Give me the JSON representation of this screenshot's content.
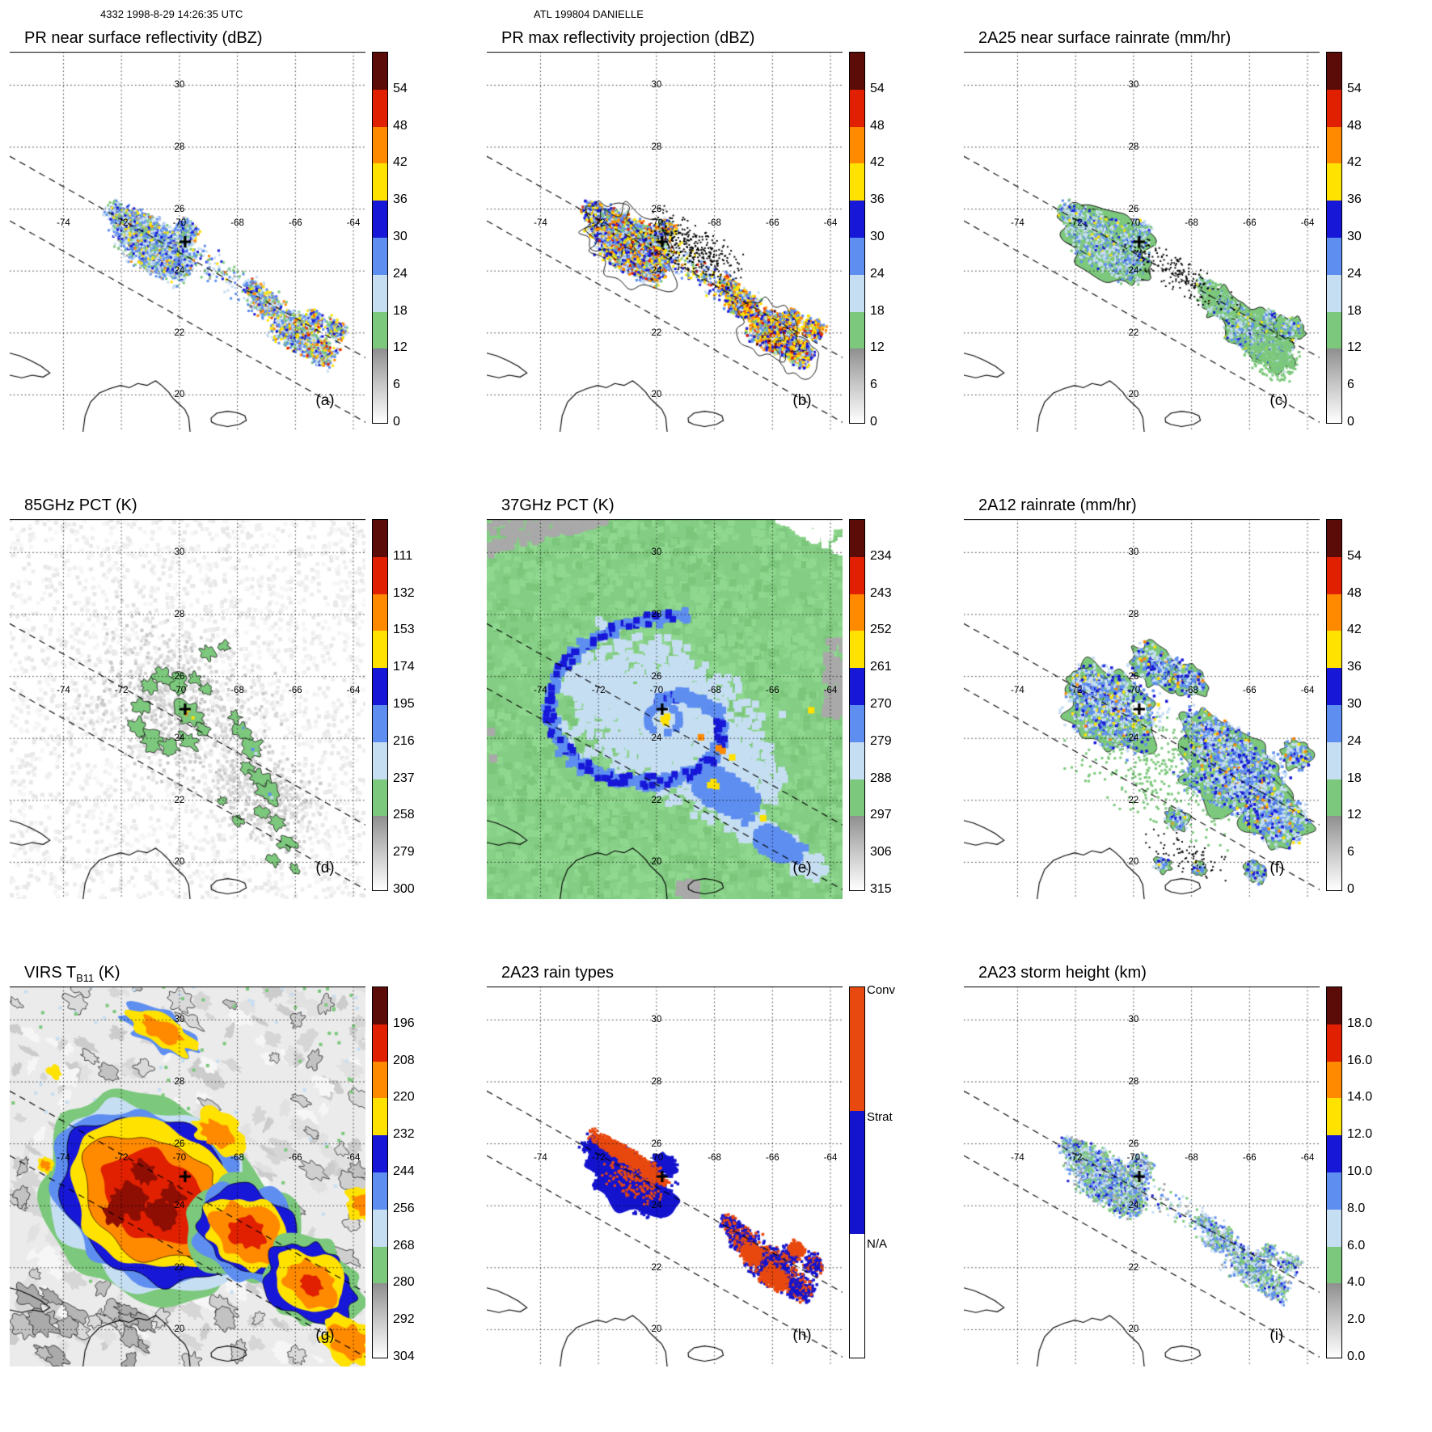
{
  "header": {
    "left": "4332 1998-8-29 14:26:35 UTC",
    "center": "ATL 199804 DANIELLE"
  },
  "chart_data": {
    "type": "heatmap",
    "description": "TRMM orbit 4332 multi-sensor 3x3 panel overpass of Hurricane Danielle (ATL 199804) at 1998-08-29 14:26:35 UTC; maps span roughly 76W-64W, 19N-31N with dashed swath-edge lines, coastlines of Cuba, Hispaniola and Puerto Rico, and a plus sign at the storm center.",
    "map": {
      "lon_ticks": [
        "-74",
        "-72",
        "-70",
        "-68",
        "-66",
        "-64"
      ],
      "lat_ticks": [
        "30",
        "28",
        "26",
        "24",
        "22",
        "20"
      ],
      "storm_center": {
        "lon": -69.8,
        "lat": 24.9,
        "marker": "+"
      }
    },
    "color_scale": [
      "#ffffff",
      "#a9a9a9",
      "#7cc87c",
      "#c6def2",
      "#5e8ef0",
      "#1717d8",
      "#ffe200",
      "#ff8a00",
      "#e02000",
      "#5c0c08"
    ],
    "rain_type_colors": {
      "conv": "#e8490f",
      "strat": "#1414cf",
      "na": "#ffffff"
    },
    "colorbars": {
      "dbz": [
        "54",
        "48",
        "42",
        "36",
        "30",
        "24",
        "18",
        "12",
        "6",
        "0"
      ],
      "pct85": [
        "111",
        "132",
        "153",
        "174",
        "195",
        "216",
        "237",
        "258",
        "279",
        "300"
      ],
      "pct37": [
        "234",
        "243",
        "252",
        "261",
        "270",
        "279",
        "288",
        "297",
        "306",
        "315"
      ],
      "virs": [
        "196",
        "208",
        "220",
        "232",
        "244",
        "256",
        "268",
        "280",
        "292",
        "304"
      ],
      "height": [
        "18.0",
        "16.0",
        "14.0",
        "12.0",
        "10.0",
        "8.0",
        "6.0",
        "4.0",
        "2.0",
        "0.0"
      ],
      "types": [
        "Conv",
        "Strat",
        "N/A"
      ]
    },
    "panels": [
      {
        "letter": "(a)",
        "title_pre": "PR near surface reflectivity (dBZ)",
        "title_sub": "",
        "title_post": "",
        "cbar": "dbz",
        "units": "dBZ"
      },
      {
        "letter": "(b)",
        "title_pre": "PR max reflectivity projection (dBZ)",
        "title_sub": "",
        "title_post": "",
        "cbar": "dbz",
        "units": "dBZ"
      },
      {
        "letter": "(c)",
        "title_pre": "2A25 near surface rainrate (mm/hr)",
        "title_sub": "",
        "title_post": "",
        "cbar": "dbz",
        "units": "mm/hr"
      },
      {
        "letter": "(d)",
        "title_pre": "85GHz PCT (K)",
        "title_sub": "",
        "title_post": "",
        "cbar": "pct85",
        "units": "K"
      },
      {
        "letter": "(e)",
        "title_pre": "37GHz PCT (K)",
        "title_sub": "",
        "title_post": "",
        "cbar": "pct37",
        "units": "K"
      },
      {
        "letter": "(f)",
        "title_pre": "2A12 rainrate (mm/hr)",
        "title_sub": "",
        "title_post": "",
        "cbar": "dbz",
        "units": "mm/hr"
      },
      {
        "letter": "(g)",
        "title_pre": "VIRS T",
        "title_sub": "B11",
        "title_post": " (K)",
        "cbar": "virs",
        "units": "K"
      },
      {
        "letter": "(h)",
        "title_pre": "2A23 rain types",
        "title_sub": "",
        "title_post": "",
        "cbar": "types",
        "units": ""
      },
      {
        "letter": "(i)",
        "title_pre": "2A23 storm height (km)",
        "title_sub": "",
        "title_post": "",
        "cbar": "height",
        "units": "km"
      }
    ]
  }
}
